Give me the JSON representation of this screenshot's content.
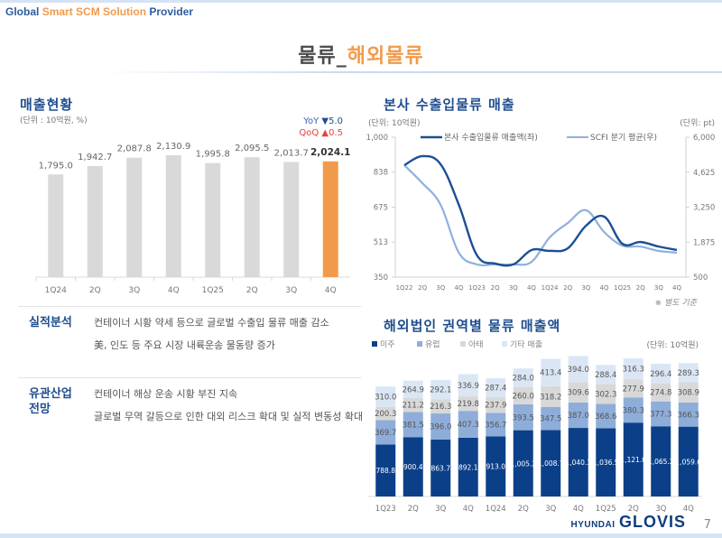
{
  "header": {
    "tagline_part1": "Global",
    "tagline_part2": "Smart SCM Solution",
    "tagline_part3": "Provider",
    "title_main": "물류_",
    "title_accent": "해외물류"
  },
  "colors": {
    "brand_blue": "#1f4e8f",
    "accent_orange": "#f29a4b",
    "bar_gray": "#d9d9d9",
    "americas": "#0b4089",
    "europe": "#8eadd9",
    "apac": "#d8d8d8",
    "other": "#dbe6f5",
    "dark_line": "#1c4f94",
    "light_line": "#8fb0dc"
  },
  "revenue": {
    "title": "매출현황",
    "unit": "(단위 : 10억원, %)",
    "yoy_label": "YoY",
    "yoy_value": "▼5.0",
    "qoq_label": "QoQ",
    "qoq_value": "▲0.5"
  },
  "analysis": {
    "label": "실적분석",
    "lines": [
      "컨테이너 시황 약세 등으로 글로벌 수출입 물류 매출 감소",
      "美, 인도 등 주요 시장 내륙운송 물동량 증가"
    ]
  },
  "outlook": {
    "label_line1": "유관산업",
    "label_line2": "전망",
    "lines": [
      "컨테이너 해상 운송 시황 부진 지속",
      "글로벌 무역 갈등으로 인한 대외 리스크 확대 및 실적 변동성 확대"
    ]
  },
  "hq_logistics": {
    "title": "본사 수출입물류 매출",
    "unit_left": "(단위: 10억원)",
    "unit_right": "(단위: pt)",
    "note": "※ 별도 기준"
  },
  "overseas": {
    "title": "해외법인 권역별 물류 매출액",
    "unit": "(단위: 10억원)"
  },
  "footer": {
    "logo_small": "HYUNDAI",
    "logo_big": "GLOVIS",
    "page": "7"
  },
  "chart_data": [
    {
      "type": "bar",
      "title": "매출현황",
      "categories": [
        "1Q24",
        "2Q",
        "3Q",
        "4Q",
        "1Q25",
        "2Q",
        "3Q",
        "4Q"
      ],
      "values": [
        1795.0,
        1942.7,
        2087.8,
        2130.9,
        1995.8,
        2095.5,
        2013.7,
        2024.1
      ],
      "labels": [
        "1,795.0",
        "1,942.7",
        "2,087.8",
        "2,130.9",
        "1,995.8",
        "2,095.5",
        "2,013.7",
        "2,024.1"
      ],
      "highlight_index": 7,
      "ylim": [
        0,
        2200
      ],
      "xlabel": "",
      "ylabel": ""
    },
    {
      "type": "line",
      "title": "본사 수출입물류 매출",
      "categories": [
        "1Q22",
        "2Q",
        "3Q",
        "4Q",
        "1Q23",
        "2Q",
        "3Q",
        "4Q",
        "1Q24",
        "2Q",
        "3Q",
        "4Q",
        "1Q25",
        "2Q",
        "3Q",
        "4Q"
      ],
      "series": [
        {
          "name": "본사 수출입물류 매출액(좌)",
          "axis": "left",
          "values": [
            870,
            912,
            874,
            686,
            451,
            413,
            409,
            476,
            472,
            484,
            589,
            631,
            505,
            513,
            492,
            476
          ]
        },
        {
          "name": "SCFI 분기 평균(우)",
          "axis": "right",
          "values": [
            4900,
            4190,
            3340,
            1460,
            1000,
            1000,
            1000,
            1100,
            2060,
            2630,
            3130,
            2270,
            1740,
            1700,
            1530,
            1460
          ]
        }
      ],
      "y_left": {
        "range": [
          350,
          1000
        ],
        "ticks": [
          "350",
          "513",
          "675",
          "838",
          "1,000"
        ],
        "tick_values": [
          350,
          513,
          675,
          838,
          1000
        ]
      },
      "y_right": {
        "range": [
          500,
          6000
        ],
        "ticks": [
          "500",
          "1,875",
          "3,250",
          "4,625",
          "6,000"
        ],
        "tick_values": [
          500,
          1875,
          3250,
          4625,
          6000
        ]
      },
      "legend": "top"
    },
    {
      "type": "bar",
      "stacked": true,
      "title": "해외법인 권역별 물류 매출액",
      "categories": [
        "1Q23",
        "2Q",
        "3Q",
        "4Q",
        "1Q24",
        "2Q",
        "3Q",
        "4Q",
        "1Q25",
        "2Q",
        "3Q",
        "4Q"
      ],
      "series": [
        {
          "name": "미주",
          "values": [
            788.8,
            900.4,
            863.7,
            892.1,
            913.0,
            1005.2,
            1008.7,
            1040.3,
            1036.5,
            1121.0,
            1065.2,
            1059.6
          ],
          "labels": [
            "788.8",
            "900.4",
            "863.7",
            "892.1",
            "913.0",
            "1,005.2",
            "1,008.7",
            "1,040.3",
            "1,036.5",
            "1,121.0",
            "1,065.2",
            "1,059.6"
          ]
        },
        {
          "name": "유럽",
          "values": [
            369.7,
            381.5,
            396.0,
            407.3,
            356.7,
            393.5,
            347.5,
            387.0,
            368.6,
            380.3,
            377.3,
            366.3
          ]
        },
        {
          "name": "아태",
          "values": [
            200.3,
            211.2,
            216.3,
            219.8,
            237.9,
            260.0,
            318.2,
            309.6,
            302.3,
            277.9,
            274.8,
            308.9
          ]
        },
        {
          "name": "기타 매출",
          "values": [
            310.0,
            264.9,
            292.1,
            336.9,
            287.4,
            284.0,
            413.4,
            394.0,
            288.4,
            316.3,
            296.4,
            289.3
          ]
        }
      ],
      "legend": "top-left"
    }
  ]
}
